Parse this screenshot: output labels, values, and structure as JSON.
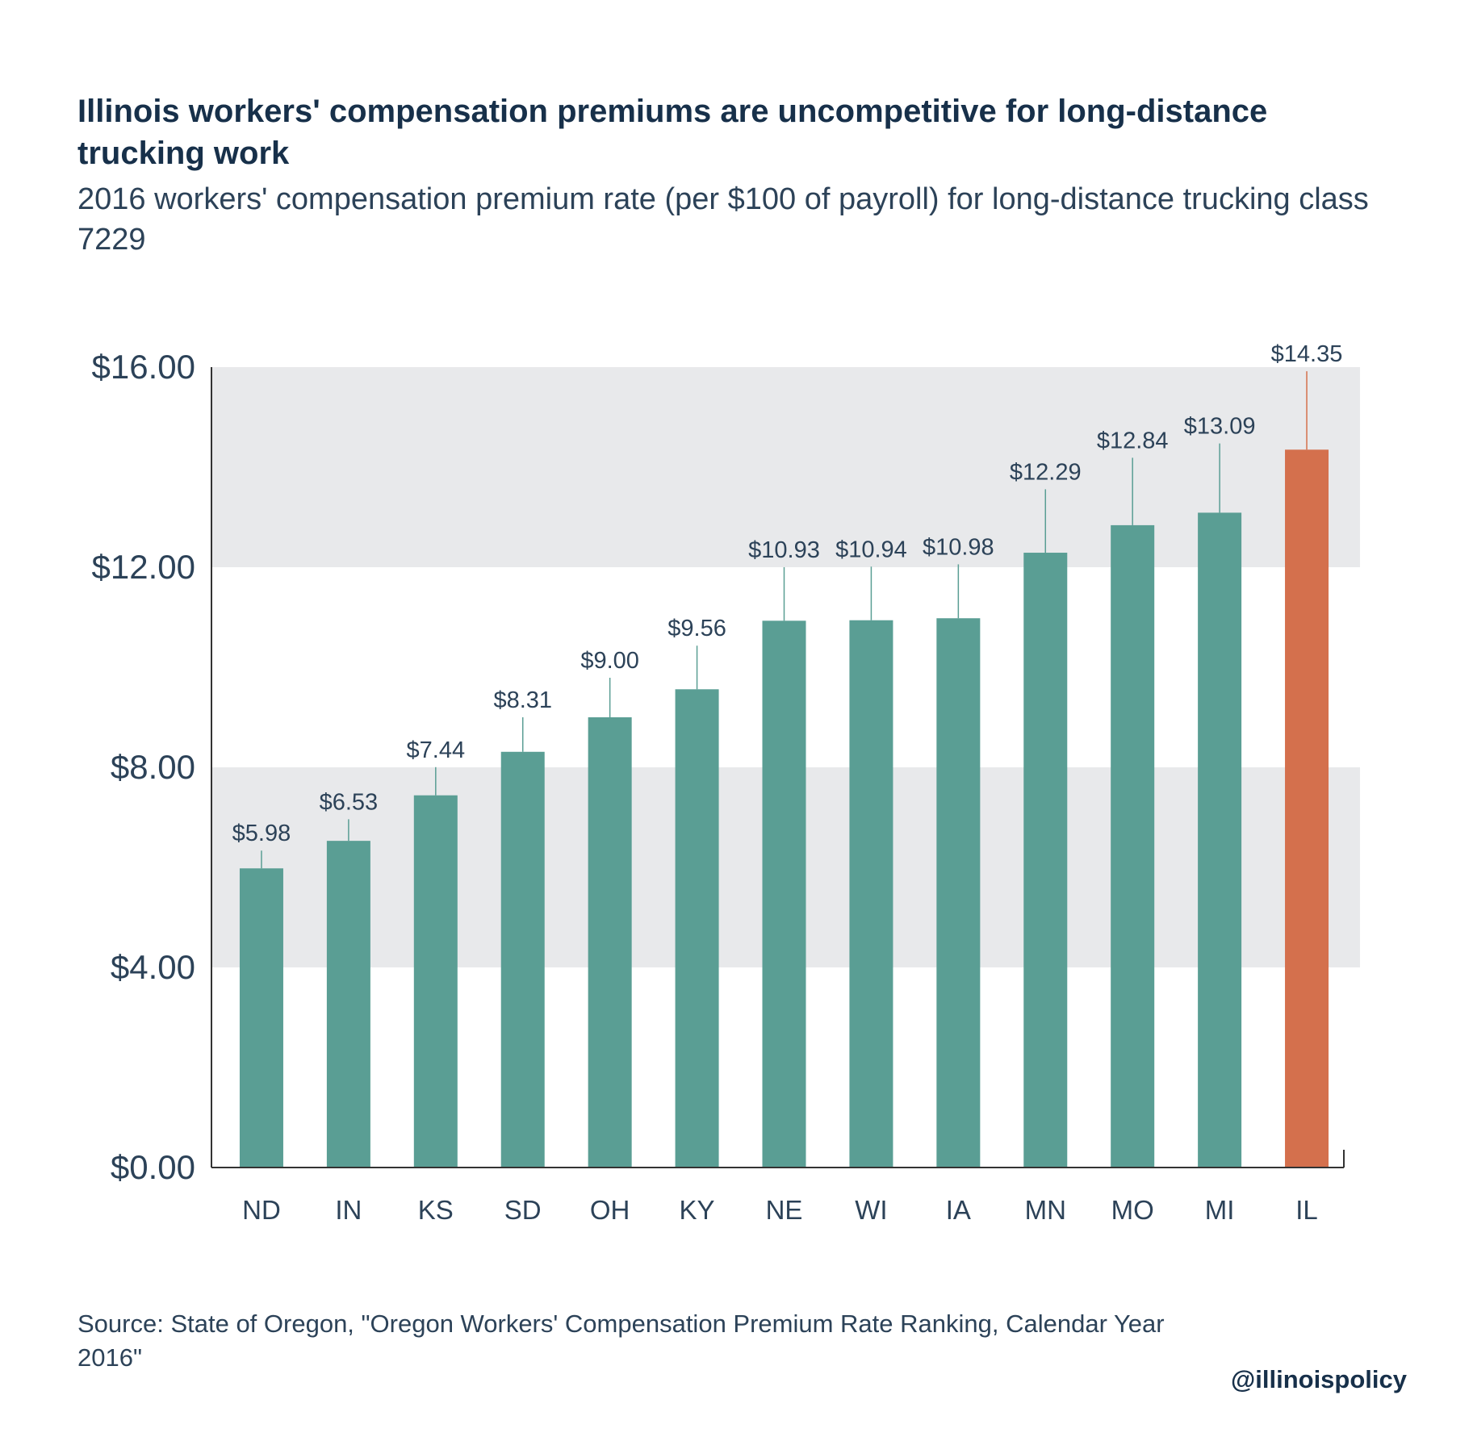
{
  "header": {
    "title": "Illinois workers' compensation premiums are uncompetitive for long-distance trucking work",
    "subtitle": "2016 workers' compensation premium rate (per $100 of payroll) for long-distance trucking class 7229"
  },
  "footer": {
    "source": "Source:  State of Oregon, \"Oregon Workers' Compensation Premium Rate Ranking, Calendar Year 2016\"",
    "handle": "@illinoispolicy"
  },
  "colors": {
    "bar": "#5a9e94",
    "highlight": "#d4704d",
    "band": "#e8e9eb",
    "axis": "#333333",
    "text": "#2c4258"
  },
  "chart_data": {
    "type": "bar",
    "categories": [
      "ND",
      "IN",
      "KS",
      "SD",
      "OH",
      "KY",
      "NE",
      "WI",
      "IA",
      "MN",
      "MO",
      "MI",
      "IL"
    ],
    "values": [
      5.98,
      6.53,
      7.44,
      8.31,
      9.0,
      9.56,
      10.93,
      10.94,
      10.98,
      12.29,
      12.84,
      13.09,
      14.35
    ],
    "data_labels": [
      "$5.98",
      "$6.53",
      "$7.44",
      "$8.31",
      "$9.00",
      "$9.56",
      "$10.93",
      "$10.94",
      "$10.98",
      "$12.29",
      "$12.84",
      "$13.09",
      "$14.35"
    ],
    "highlight_category": "IL",
    "ylim": [
      0,
      16
    ],
    "yticks": [
      0,
      4,
      8,
      12,
      16
    ],
    "ytick_labels": [
      "$0.00",
      "$4.00",
      "$8.00",
      "$12.00",
      "$16.00"
    ],
    "bands": [
      [
        4,
        8
      ],
      [
        12,
        16
      ]
    ],
    "xlabel": "",
    "ylabel": ""
  }
}
